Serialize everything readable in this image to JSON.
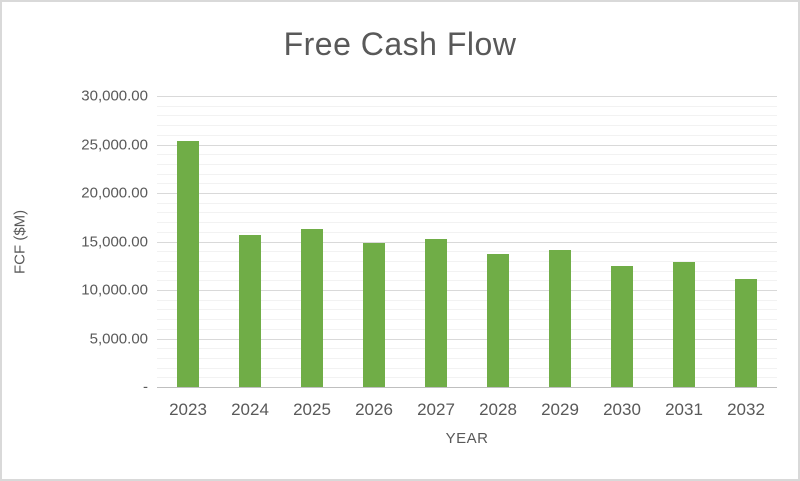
{
  "chart_data": {
    "type": "bar",
    "title": "Free Cash Flow",
    "xlabel": "YEAR",
    "ylabel": "FCF ($M)",
    "categories": [
      "2023",
      "2024",
      "2025",
      "2026",
      "2027",
      "2028",
      "2029",
      "2030",
      "2031",
      "2032"
    ],
    "values": [
      25400,
      15700,
      16300,
      14800,
      15300,
      13700,
      14100,
      12500,
      12900,
      11100
    ],
    "ylim": [
      0,
      30000
    ],
    "y_major_unit": 5000,
    "y_minor_unit": 1000,
    "y_ticks": [
      {
        "label": "30,000.00",
        "value": 30000
      },
      {
        "label": "25,000.00",
        "value": 25000
      },
      {
        "label": "20,000.00",
        "value": 20000
      },
      {
        "label": "15,000.00",
        "value": 15000
      },
      {
        "label": "10,000.00",
        "value": 10000
      },
      {
        "label": "5,000.00",
        "value": 5000
      },
      {
        "label": "-",
        "value": 0
      }
    ],
    "legend_position": "none",
    "grid": "on",
    "colors": {
      "bar": "#70AD47",
      "title_text": "#595959",
      "tick_text": "#595959",
      "gridline_major": "#D9D9D9",
      "gridline_minor": "#F2F2F2",
      "axis_line": "#BFBFBF",
      "frame_border": "#D9D9D9",
      "background": "#FFFFFF"
    }
  }
}
